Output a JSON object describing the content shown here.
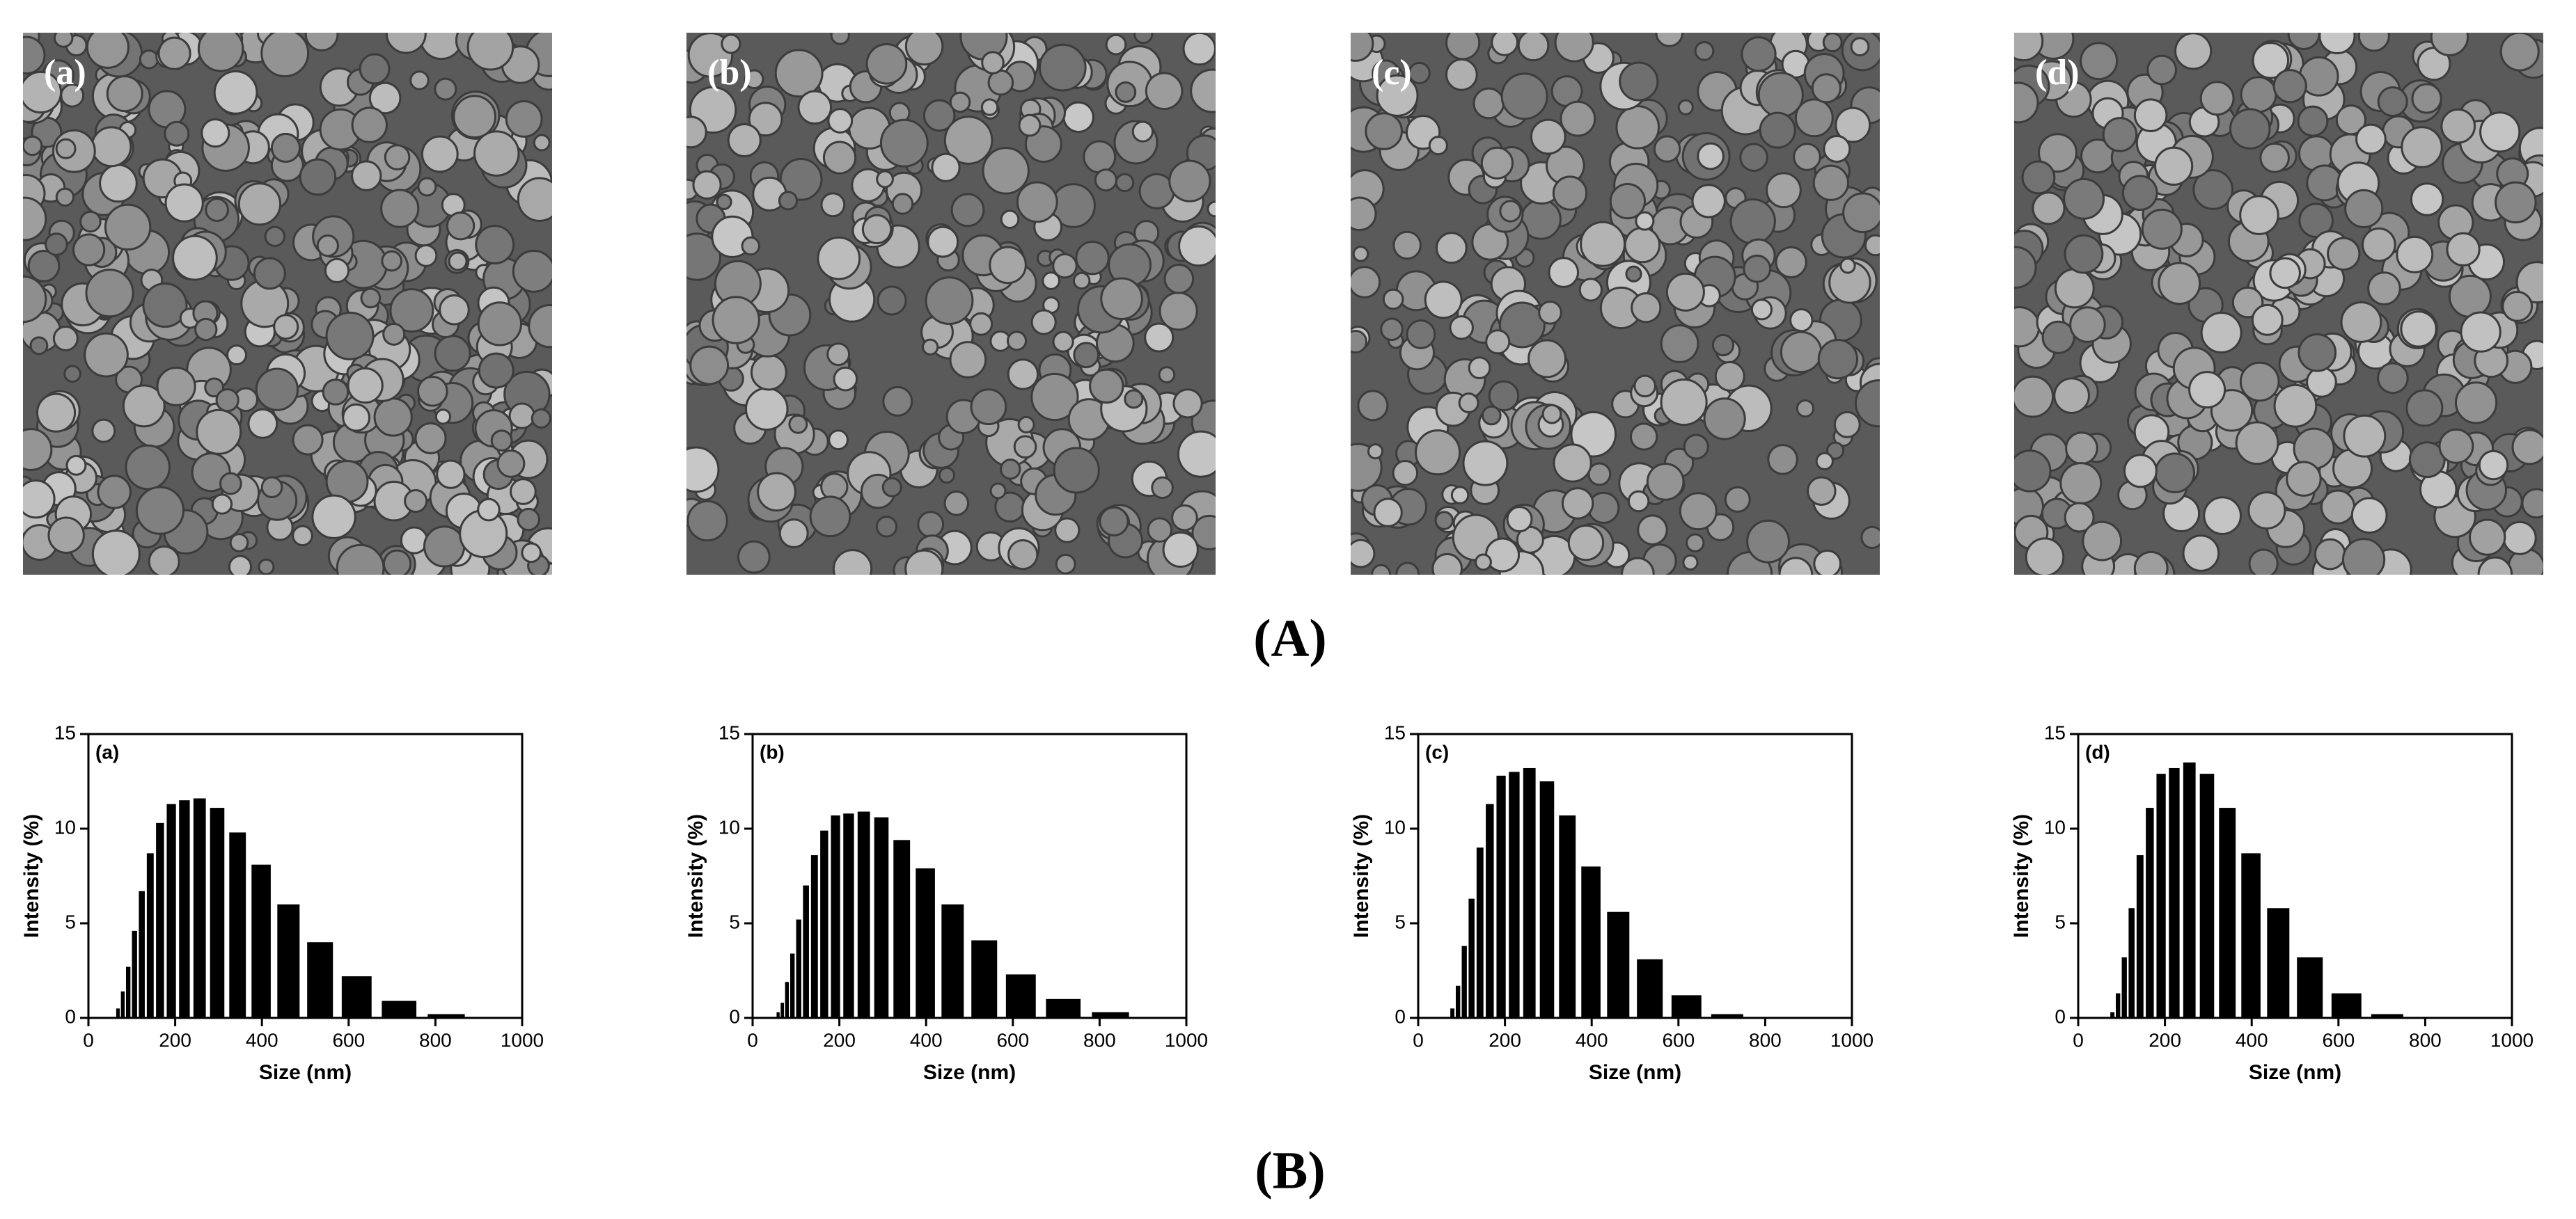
{
  "images": {
    "labels": [
      "(a)",
      "(b)",
      "(c)",
      "(d)"
    ]
  },
  "part_labels": [
    "(A)",
    "(B)"
  ],
  "chart_data": [
    {
      "type": "bar",
      "title": "(a)",
      "x_label": "Size (nm)",
      "y_label": "Intensity (%)",
      "color": "#000000",
      "x": [
        68.1,
        78.8,
        91.3,
        105.7,
        122.4,
        141.8,
        164.2,
        190.1,
        220.2,
        255.0,
        295.3,
        342.0,
        396.1,
        458.7,
        531.2,
        615.1,
        712.4,
        825.0
      ],
      "values": [
        0.5,
        1.4,
        2.7,
        4.6,
        6.7,
        8.7,
        10.3,
        11.3,
        11.5,
        11.6,
        11.1,
        9.8,
        8.1,
        6.0,
        4.0,
        2.2,
        0.9,
        0.2
      ],
      "xlim": [
        0,
        1000
      ],
      "xticks": [
        0,
        200,
        400,
        600,
        800,
        1000
      ],
      "ylim": [
        0,
        15
      ],
      "yticks": [
        0,
        5,
        10,
        15
      ]
    },
    {
      "type": "bar",
      "title": "(b)",
      "x_label": "Size (nm)",
      "y_label": "Intensity (%)",
      "color": "#000000",
      "x": [
        58.8,
        68.1,
        78.8,
        91.3,
        105.7,
        122.4,
        141.8,
        164.2,
        190.1,
        220.2,
        255.0,
        295.3,
        342.0,
        396.1,
        458.7,
        531.2,
        615.1,
        712.4,
        825.0
      ],
      "values": [
        0.3,
        0.8,
        1.9,
        3.4,
        5.2,
        7.0,
        8.6,
        9.9,
        10.7,
        10.8,
        10.9,
        10.6,
        9.4,
        7.9,
        6.0,
        4.1,
        2.3,
        1.0,
        0.3
      ],
      "xlim": [
        0,
        1000
      ],
      "xticks": [
        0,
        200,
        400,
        600,
        800,
        1000
      ],
      "ylim": [
        0,
        15
      ],
      "yticks": [
        0,
        5,
        10,
        15
      ]
    },
    {
      "type": "bar",
      "title": "(c)",
      "x_label": "Size (nm)",
      "y_label": "Intensity (%)",
      "color": "#000000",
      "x": [
        78.8,
        91.3,
        105.7,
        122.4,
        141.8,
        164.2,
        190.1,
        220.2,
        255.0,
        295.3,
        342.0,
        396.1,
        458.7,
        531.2,
        615.1,
        712.4
      ],
      "values": [
        0.5,
        1.7,
        3.8,
        6.3,
        9.0,
        11.3,
        12.8,
        13.0,
        13.2,
        12.5,
        10.7,
        8.0,
        5.6,
        3.1,
        1.2,
        0.2
      ],
      "xlim": [
        0,
        1000
      ],
      "xticks": [
        0,
        200,
        400,
        600,
        800,
        1000
      ],
      "ylim": [
        0,
        15
      ],
      "yticks": [
        0,
        5,
        10,
        15
      ]
    },
    {
      "type": "bar",
      "title": "(d)",
      "x_label": "Size (nm)",
      "y_label": "Intensity (%)",
      "color": "#000000",
      "x": [
        78.8,
        91.3,
        105.7,
        122.4,
        141.8,
        164.2,
        190.1,
        220.2,
        255.0,
        295.3,
        342.0,
        396.1,
        458.7,
        531.2,
        615.1,
        712.4
      ],
      "values": [
        0.3,
        1.3,
        3.2,
        5.8,
        8.6,
        11.1,
        12.9,
        13.2,
        13.5,
        12.9,
        11.1,
        8.7,
        5.8,
        3.2,
        1.3,
        0.2
      ],
      "xlim": [
        0,
        1000
      ],
      "xticks": [
        0,
        200,
        400,
        600,
        800,
        1000
      ],
      "ylim": [
        0,
        15
      ],
      "yticks": [
        0,
        5,
        10,
        15
      ]
    }
  ]
}
